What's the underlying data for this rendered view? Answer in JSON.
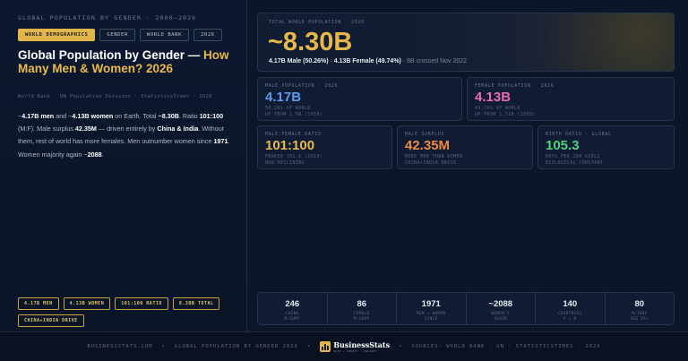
{
  "eyebrow": "GLOBAL POPULATION BY GENDER · 2000–2026",
  "tabs": [
    {
      "label": "WORLD DEMOGRAPHICS"
    },
    {
      "label": "GENDER"
    },
    {
      "label": "WORLD BANK"
    },
    {
      "label": "2026"
    }
  ],
  "title": {
    "main": "Global Population by Gender — ",
    "highlight": "How Many Men & Women? 2026"
  },
  "source": "World Bank · UN Population Division · StatisticsTimes · 2026",
  "description": {
    "p1": "~",
    "men": "4.17B men",
    "p2": " and ~",
    "women": "4.13B women",
    "p3": " on Earth. Total ",
    "total": "~8.30B",
    "p4": ". Ratio ",
    "ratio": "101:100",
    "p5": " (M:F). Male surplus ",
    "surplus": "42.35M",
    "p6": " — driven entirely by ",
    "drivers": "China & India",
    "p7": ". Without them, rest of world has more females. Men outnumber women since ",
    "since": "1971",
    "p8": ". Women majority again ~",
    "again": "2088",
    "p9": "."
  },
  "chips": [
    "4.17B MEN",
    "4.13B WOMEN",
    "101:100 RATIO",
    "8.30B TOTAL",
    "CHINA+INDIA DRIVE"
  ],
  "hero": {
    "label": "TOTAL WORLD POPULATION · 2026",
    "value": "~8.30B",
    "male": "4.17B Male (50.26%)",
    "sep": " · ",
    "female": "4.13B Female (49.74%)",
    "note": " · 8B crossed Nov 2022"
  },
  "cards": [
    {
      "label": "MALE POPULATION · 2026",
      "value": "4.17B",
      "sub1": "50.26% OF WORLD",
      "sub2": "UP FROM 1.5B (1950)",
      "color": "#5b9bf0"
    },
    {
      "label": "FEMALE POPULATION · 2026",
      "value": "4.13B",
      "sub1": "49.74% OF WORLD",
      "sub2": "UP FROM 1.51B (1950)",
      "color": "#ec6bb0"
    },
    {
      "label": "MALE:FEMALE RATIO",
      "value": "101:100",
      "sub1": "PEAKED 101.6 (2010)",
      "sub2": "NOW DECLINING",
      "color": "#e8b94a"
    },
    {
      "label": "MALE SURPLUS",
      "value": "42.35M",
      "sub1": "MORE MEN THAN WOMEN",
      "sub2": "CHINA+INDIA DRIVE",
      "color": "#f08a3c"
    },
    {
      "label": "BIRTH RATIO · GLOBAL",
      "value": "105.3",
      "sub1": "BOYS PER 100 GIRLS",
      "sub2": "BIOLOGICAL CONSTANT",
      "color": "#4fd17a"
    }
  ],
  "stats": [
    {
      "n": "246",
      "c1": "CHINA",
      "c2": "M:SURP"
    },
    {
      "n": "86",
      "c1": "FEMALE",
      "c2": "M:SURP"
    },
    {
      "n": "1971",
      "c1": "MEN > WOMEN",
      "c2": "SINCE"
    },
    {
      "n": "~2088",
      "c1": "WOMEN'S",
      "c2": "AGAIN"
    },
    {
      "n": "140",
      "c1": "COUNTRIES",
      "c2": "F > M"
    },
    {
      "n": "80",
      "c1": "M/100F",
      "c2": "AGE 65+"
    }
  ],
  "footer": {
    "site": "BUSINESSSTATS.COM",
    "topic": "GLOBAL POPULATION BY GENDER 2026",
    "brand": "BusinessStats",
    "tagline": "DATA · CHARTS · INSIGHT",
    "sources": "SOURCES: WORLD BANK · UN · STATISTICSTIMES · 2026",
    "dot": "•"
  }
}
